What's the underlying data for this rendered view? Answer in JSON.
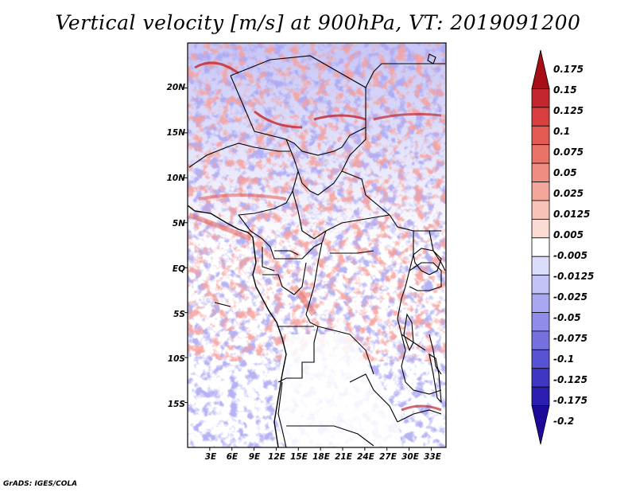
{
  "title": "Vertical velocity [m/s] at 900hPa, VT: 2019091200",
  "footer": "GrADS: IGES/COLA",
  "map": {
    "lat_ticks": [
      "20N",
      "15N",
      "10N",
      "5N",
      "EQ",
      "5S",
      "10S",
      "15S"
    ],
    "lon_ticks": [
      "3E",
      "6E",
      "9E",
      "12E",
      "15E",
      "18E",
      "21E",
      "24E",
      "27E",
      "30E",
      "33E"
    ],
    "lat_values": [
      20,
      15,
      10,
      5,
      0,
      -5,
      -10,
      -15
    ],
    "lon_values": [
      3,
      6,
      9,
      12,
      15,
      18,
      21,
      24,
      27,
      30,
      33
    ],
    "extent": {
      "lon_min": 0,
      "lon_max": 35,
      "lat_min": -20,
      "lat_max": 25
    }
  },
  "colorbar": {
    "labels": [
      "0.175",
      "0.15",
      "0.125",
      "0.1",
      "0.075",
      "0.05",
      "0.025",
      "0.0125",
      "0.005",
      "-0.005",
      "-0.0125",
      "-0.025",
      "-0.05",
      "-0.075",
      "-0.1",
      "-0.125",
      "-0.175",
      "-0.2"
    ],
    "colors": [
      "#a50f15",
      "#c1272d",
      "#d8403f",
      "#e35a52",
      "#ea7367",
      "#ef8d80",
      "#f3a79b",
      "#f7c3b9",
      "#fbdcd5",
      "#ffffff",
      "#dcdcfb",
      "#c3c2f6",
      "#a9a7f0",
      "#8f8cea",
      "#7470df",
      "#5853d2",
      "#3f37c3",
      "#2a1db0",
      "#1d0a9a"
    ]
  }
}
